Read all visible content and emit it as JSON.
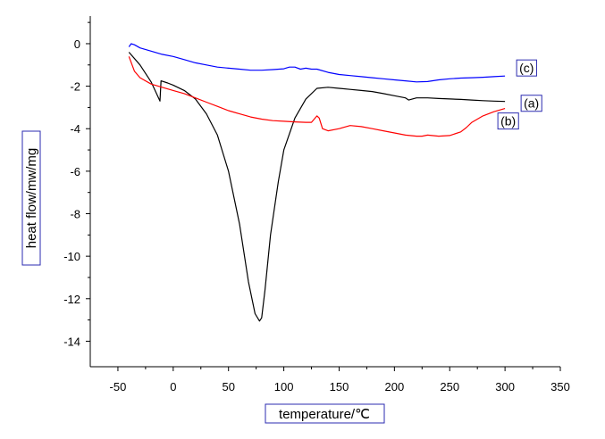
{
  "chart_data": {
    "type": "line",
    "title": "",
    "xlabel": "temperature/℃",
    "ylabel": "heat flow/mw/mg",
    "xlim": [
      -75,
      350
    ],
    "ylim": [
      -15.2,
      1.3
    ],
    "xticks": [
      -50,
      0,
      50,
      100,
      150,
      200,
      250,
      300,
      350
    ],
    "yticks": [
      0,
      -2,
      -4,
      -6,
      -8,
      -10,
      -12,
      -14
    ],
    "grid": false,
    "legend": "none",
    "series": [
      {
        "name": "(a)",
        "color": "#000000",
        "x": [
          -40,
          -30,
          -20,
          -12,
          -11,
          -5,
          0,
          10,
          20,
          30,
          40,
          50,
          60,
          68,
          74,
          78,
          80,
          83,
          88,
          95,
          100,
          110,
          120,
          130,
          140,
          150,
          160,
          170,
          180,
          190,
          200,
          210,
          213,
          220,
          230,
          240,
          250,
          260,
          270,
          280,
          290,
          300
        ],
        "y": [
          -0.4,
          -1.0,
          -1.8,
          -2.7,
          -1.75,
          -1.85,
          -1.95,
          -2.2,
          -2.6,
          -3.3,
          -4.3,
          -6.0,
          -8.5,
          -11.2,
          -12.7,
          -13.05,
          -12.9,
          -11.6,
          -9.0,
          -6.5,
          -5.0,
          -3.5,
          -2.6,
          -2.1,
          -2.05,
          -2.1,
          -2.15,
          -2.2,
          -2.25,
          -2.35,
          -2.45,
          -2.55,
          -2.65,
          -2.55,
          -2.55,
          -2.58,
          -2.6,
          -2.62,
          -2.65,
          -2.68,
          -2.7,
          -2.72
        ]
      },
      {
        "name": "(b)",
        "color": "#ff0000",
        "x": [
          -40,
          -35,
          -30,
          -20,
          -10,
          0,
          10,
          20,
          30,
          40,
          50,
          60,
          70,
          80,
          90,
          100,
          110,
          120,
          125,
          130,
          132,
          135,
          140,
          150,
          160,
          170,
          180,
          190,
          200,
          210,
          220,
          225,
          230,
          240,
          250,
          260,
          265,
          270,
          280,
          290,
          300
        ],
        "y": [
          -0.6,
          -1.3,
          -1.6,
          -1.9,
          -2.05,
          -2.2,
          -2.35,
          -2.55,
          -2.75,
          -2.95,
          -3.15,
          -3.3,
          -3.45,
          -3.55,
          -3.62,
          -3.65,
          -3.68,
          -3.7,
          -3.7,
          -3.4,
          -3.5,
          -4.0,
          -4.1,
          -4.0,
          -3.85,
          -3.9,
          -4.0,
          -4.1,
          -4.2,
          -4.3,
          -4.35,
          -4.35,
          -4.3,
          -4.35,
          -4.32,
          -4.15,
          -3.95,
          -3.7,
          -3.4,
          -3.2,
          -3.05
        ]
      },
      {
        "name": "(c)",
        "color": "#0000ff",
        "x": [
          -40,
          -38,
          -35,
          -30,
          -20,
          -10,
          0,
          10,
          20,
          30,
          40,
          50,
          60,
          70,
          80,
          90,
          100,
          105,
          110,
          115,
          120,
          125,
          130,
          140,
          150,
          160,
          170,
          180,
          190,
          200,
          210,
          220,
          230,
          240,
          250,
          260,
          270,
          280,
          290,
          300
        ],
        "y": [
          -0.15,
          0.0,
          -0.05,
          -0.2,
          -0.35,
          -0.5,
          -0.6,
          -0.75,
          -0.9,
          -1.0,
          -1.1,
          -1.15,
          -1.2,
          -1.25,
          -1.25,
          -1.22,
          -1.18,
          -1.1,
          -1.1,
          -1.2,
          -1.15,
          -1.2,
          -1.2,
          -1.35,
          -1.45,
          -1.5,
          -1.55,
          -1.6,
          -1.65,
          -1.7,
          -1.75,
          -1.8,
          -1.78,
          -1.7,
          -1.65,
          -1.62,
          -1.6,
          -1.58,
          -1.55,
          -1.52
        ]
      }
    ]
  }
}
